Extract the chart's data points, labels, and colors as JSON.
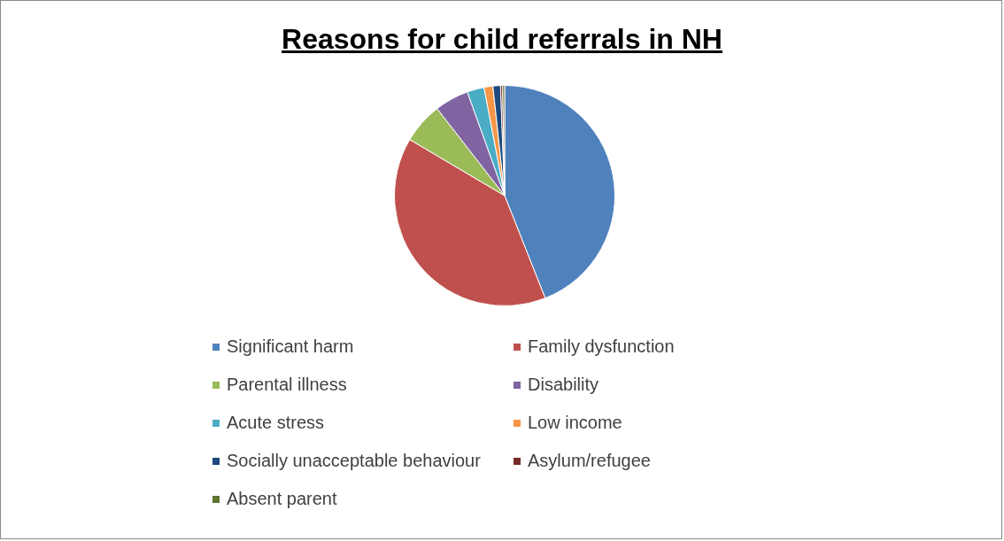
{
  "chart_data": {
    "type": "pie",
    "title": "Reasons for child referrals in NH",
    "categories": [
      "Significant harm",
      "Family dysfunction",
      "Parental illness",
      "Disability",
      "Acute stress",
      "Low income",
      "Socially unacceptable behaviour",
      "Asylum/refugee",
      "Absent parent"
    ],
    "values": [
      44,
      39.5,
      6,
      5,
      2.5,
      1.3,
      1.1,
      0.3,
      0.3
    ],
    "colors": [
      "#4f81bd",
      "#c0504d",
      "#9bbb59",
      "#8064a2",
      "#4bacc6",
      "#f79646",
      "#1f497d",
      "#772c2a",
      "#5f7530"
    ],
    "legend": "bottom"
  }
}
